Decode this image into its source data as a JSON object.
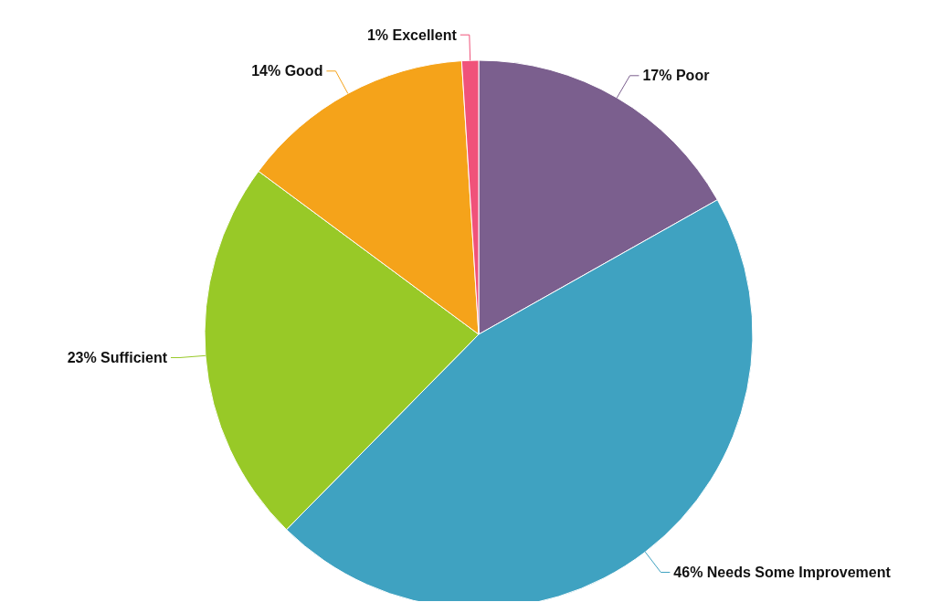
{
  "chart_data": {
    "type": "pie",
    "categories": [
      "Poor",
      "Needs Some Improvement",
      "Sufficient",
      "Good",
      "Excellent"
    ],
    "values": [
      17,
      46,
      23,
      14,
      1
    ],
    "value_labels": [
      "17%",
      "46%",
      "23%",
      "14%",
      "1%"
    ],
    "colors": [
      "#7b5f8e",
      "#3fa2c1",
      "#98c927",
      "#f5a31a",
      "#f0527a"
    ]
  }
}
